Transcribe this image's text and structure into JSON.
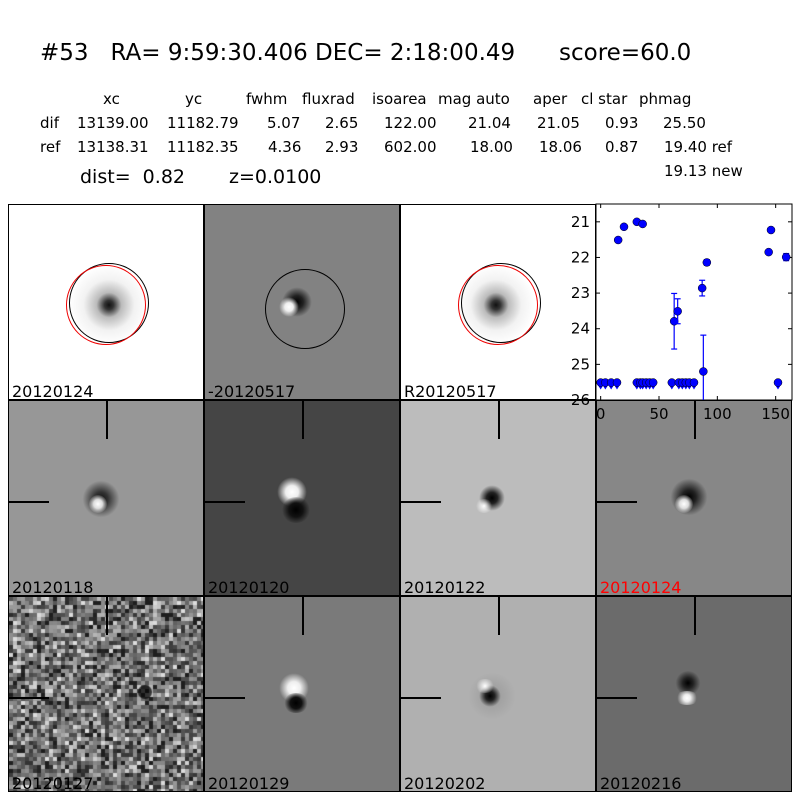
{
  "header": {
    "title": "#53   RA= 9:59:30.406 DEC= 2:18:00.49      score=60.0",
    "columns": [
      "xc",
      "yc",
      "fwhm",
      "fluxrad",
      "isoarea",
      "mag auto",
      "aper",
      "cl star",
      "phmag"
    ],
    "rows": [
      {
        "label": "dif",
        "values": [
          "13139.00",
          "11182.79",
          "5.07",
          "2.65",
          "122.00",
          "21.04",
          "21.05",
          "0.93",
          "25.50"
        ]
      },
      {
        "label": "ref",
        "values": [
          "13138.31",
          "11182.35",
          "4.36",
          "2.93",
          "602.00",
          "18.00",
          "18.06",
          "0.87",
          "19.40 ref"
        ]
      }
    ],
    "dist": "dist=  0.82",
    "z": "z=0.0100",
    "new_mag": "19.13 new"
  },
  "stamps": [
    {
      "label": "20120124",
      "bg": "#ffffff",
      "label_color": "#000000"
    },
    {
      "label": "-20120517",
      "bg": "#828282",
      "label_color": "#000000"
    },
    {
      "label": "R20120517",
      "bg": "#ffffff",
      "label_color": "#000000"
    },
    {
      "label": "20120118",
      "bg": "#979797",
      "label_color": "#000000"
    },
    {
      "label": "20120120",
      "bg": "#454545",
      "label_color": "#000000"
    },
    {
      "label": "20120122",
      "bg": "#bcbcbc",
      "label_color": "#000000"
    },
    {
      "label": "20120124",
      "bg": "#878787",
      "label_color": "#ff0000"
    },
    {
      "label": "20120127",
      "bg": "#707070",
      "label_color": "#000000"
    },
    {
      "label": "20120129",
      "bg": "#7a7a7a",
      "label_color": "#000000"
    },
    {
      "label": "20120202",
      "bg": "#b0b0b0",
      "label_color": "#000000"
    },
    {
      "label": "20120216",
      "bg": "#6b6b6b",
      "label_color": "#000000"
    }
  ],
  "chart_data": {
    "type": "scatter",
    "title": "",
    "xlabel": "",
    "ylabel": "",
    "xlim": [
      -4,
      164
    ],
    "ylim": [
      26,
      20.5
    ],
    "y_inverted": true,
    "xticks": [
      "0",
      "50",
      "100",
      "150"
    ],
    "yticks": [
      "21",
      "22",
      "23",
      "24",
      "25",
      "26"
    ],
    "grid": false,
    "color": "#0000ff",
    "detections": [
      {
        "x": 15,
        "y": 21.51,
        "err": 0
      },
      {
        "x": 20,
        "y": 21.14,
        "err": 0
      },
      {
        "x": 31,
        "y": 21.0,
        "err": 0
      },
      {
        "x": 36,
        "y": 21.06,
        "err": 0
      },
      {
        "x": 63,
        "y": 23.79,
        "err": 0.78
      },
      {
        "x": 66,
        "y": 23.51,
        "err": 0.35
      },
      {
        "x": 87,
        "y": 22.86,
        "err": 0.22
      },
      {
        "x": 91,
        "y": 22.14,
        "err": 0.08
      },
      {
        "x": 88,
        "y": 25.2,
        "err": 1.02
      },
      {
        "x": 144,
        "y": 21.85,
        "err": 0
      },
      {
        "x": 146,
        "y": 21.23,
        "err": 0
      },
      {
        "x": 159,
        "y": 21.99,
        "err": 0.1
      }
    ],
    "upper_limits": [
      {
        "x": 0,
        "y": 25.51
      },
      {
        "x": 4,
        "y": 25.51
      },
      {
        "x": 9,
        "y": 25.51
      },
      {
        "x": 14,
        "y": 25.51
      },
      {
        "x": 31,
        "y": 25.51
      },
      {
        "x": 34,
        "y": 25.51
      },
      {
        "x": 36,
        "y": 25.51
      },
      {
        "x": 39,
        "y": 25.51
      },
      {
        "x": 42,
        "y": 25.51
      },
      {
        "x": 45,
        "y": 25.51
      },
      {
        "x": 61,
        "y": 25.51
      },
      {
        "x": 67,
        "y": 25.51
      },
      {
        "x": 70,
        "y": 25.51
      },
      {
        "x": 73,
        "y": 25.51
      },
      {
        "x": 76,
        "y": 25.51
      },
      {
        "x": 80,
        "y": 25.51
      },
      {
        "x": 152,
        "y": 25.51
      }
    ]
  }
}
